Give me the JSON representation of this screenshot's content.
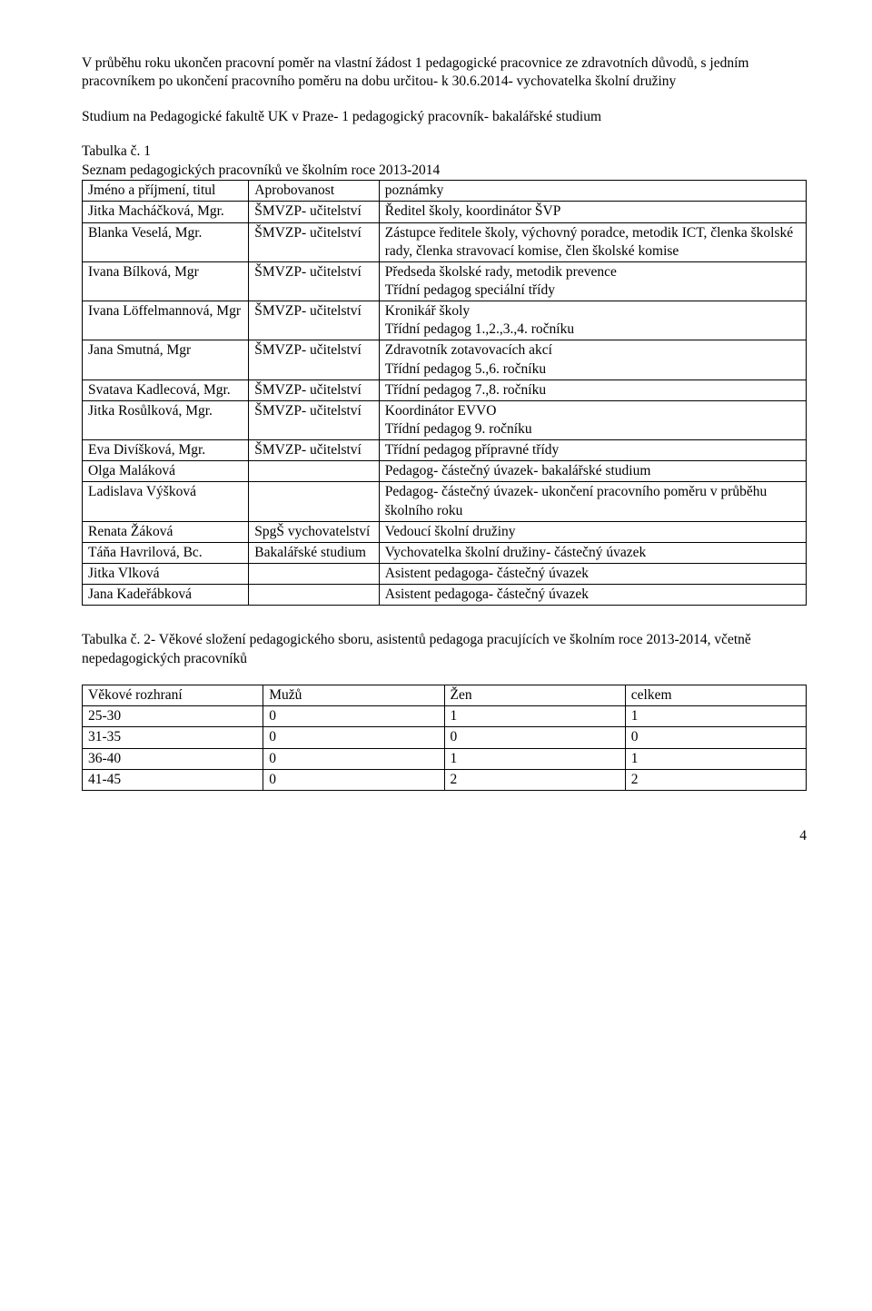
{
  "intro": {
    "p1": "V průběhu roku ukončen pracovní poměr na vlastní žádost 1 pedagogické pracovnice ze zdravotních důvodů, s jedním pracovníkem po ukončení pracovního poměru na dobu určitou- k 30.6.2014- vychovatelka školní družiny",
    "p2": "Studium na Pedagogické fakultě UK v Praze- 1 pedagogický pracovník- bakalářské studium"
  },
  "table1_caption_line1": "Tabulka č. 1",
  "table1_caption_line2": "Seznam pedagogických pracovníků ve školním roce 2013-2014",
  "table1": {
    "header": {
      "c1": "Jméno a příjmení, titul",
      "c2": "Aprobovanost",
      "c3": "poznámky"
    },
    "rows": [
      {
        "c1": "Jitka Macháčková, Mgr.",
        "c2": "ŠMVZP- učitelství",
        "c3": "Ředitel školy, koordinátor ŠVP"
      },
      {
        "c1": "Blanka Veselá, Mgr.",
        "c2": "ŠMVZP- učitelství",
        "c3": "Zástupce ředitele školy, výchovný poradce, metodik ICT, členka školské rady, členka stravovací komise, člen školské komise"
      },
      {
        "c1": "Ivana Bílková, Mgr",
        "c2": "ŠMVZP- učitelství",
        "c3": "Předseda školské rady, metodik prevence\nTřídní pedagog speciální třídy"
      },
      {
        "c1": "Ivana Löffelmannová, Mgr",
        "c2": "ŠMVZP- učitelství",
        "c3": "Kronikář školy\nTřídní pedagog 1.,2.,3.,4. ročníku"
      },
      {
        "c1": "Jana Smutná, Mgr",
        "c2": "ŠMVZP- učitelství",
        "c3": "Zdravotník zotavovacích akcí\nTřídní pedagog 5.,6. ročníku"
      },
      {
        "c1": "Svatava Kadlecová, Mgr.",
        "c2": "ŠMVZP- učitelství",
        "c3": "Třídní pedagog 7.,8. ročníku"
      },
      {
        "c1": "Jitka Rosůlková, Mgr.",
        "c2": "ŠMVZP- učitelství",
        "c3": "Koordinátor EVVO\nTřídní pedagog 9. ročníku"
      },
      {
        "c1": "Eva Divíšková, Mgr.",
        "c2": "ŠMVZP- učitelství",
        "c3": "Třídní pedagog přípravné třídy"
      },
      {
        "c1": "Olga Maláková",
        "c2": "",
        "c3": "Pedagog- částečný úvazek- bakalářské studium"
      },
      {
        "c1": "Ladislava Výšková",
        "c2": "",
        "c3": "Pedagog- částečný úvazek- ukončení pracovního poměru v průběhu školního roku"
      },
      {
        "c1": "Renata Žáková",
        "c2": "SpgŠ vychovatelství",
        "c3": "Vedoucí školní družiny"
      },
      {
        "c1": "Táňa Havrilová, Bc.",
        "c2": "Bakalářské studium",
        "c3": "Vychovatelka školní družiny- částečný úvazek"
      },
      {
        "c1": "Jitka Vlková",
        "c2": "",
        "c3": "Asistent pedagoga- částečný úvazek"
      },
      {
        "c1": "Jana Kadeřábková",
        "c2": "",
        "c3": "Asistent pedagoga- částečný úvazek"
      }
    ]
  },
  "table2_caption": "Tabulka č. 2- Věkové složení pedagogického sboru, asistentů pedagoga pracujících ve školním roce 2013-2014, včetně nepedagogických pracovníků",
  "table2": {
    "header": {
      "c1": "Věkové rozhraní",
      "c2": "Mužů",
      "c3": "Žen",
      "c4": "celkem"
    },
    "rows": [
      {
        "c1": "25-30",
        "c2": "0",
        "c3": "1",
        "c4": "1"
      },
      {
        "c1": "31-35",
        "c2": "0",
        "c3": "0",
        "c4": "0"
      },
      {
        "c1": "36-40",
        "c2": "0",
        "c3": "1",
        "c4": "1"
      },
      {
        "c1": "41-45",
        "c2": "0",
        "c3": "2",
        "c4": "2"
      }
    ]
  },
  "page_number": "4"
}
